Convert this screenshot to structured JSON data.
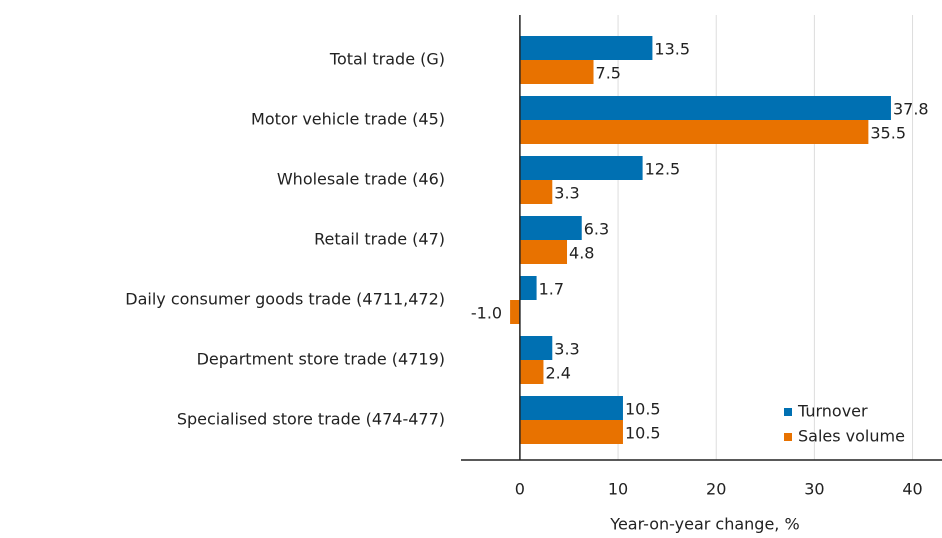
{
  "chart_data": {
    "type": "bar",
    "orientation": "horizontal",
    "categories": [
      "Total trade (G)",
      "Motor vehicle trade (45)",
      "Wholesale trade (46)",
      "Retail trade (47)",
      "Daily consumer goods trade (4711,472)",
      "Department store trade (4719)",
      "Specialised store trade (474-477)"
    ],
    "series": [
      {
        "name": "Turnover",
        "color": "#0070b2",
        "values": [
          13.5,
          37.8,
          12.5,
          6.3,
          1.7,
          3.3,
          10.5
        ],
        "value_labels": [
          "13.5",
          "37.8",
          "12.5",
          "6.3",
          "1.7",
          "3.3",
          "10.5"
        ]
      },
      {
        "name": "Sales volume",
        "color": "#e87200",
        "values": [
          7.5,
          35.5,
          3.3,
          4.8,
          -1.0,
          2.4,
          10.5
        ],
        "value_labels": [
          "7.5",
          "35.5",
          "3.3",
          "4.8",
          "-1.0",
          "2.4",
          "10.5"
        ]
      }
    ],
    "xlabel": "Year-on-year change, %",
    "xlim": [
      -6,
      43
    ],
    "xticks": [
      0,
      10,
      20,
      30,
      40
    ],
    "grid": true,
    "legend": "lower right"
  }
}
